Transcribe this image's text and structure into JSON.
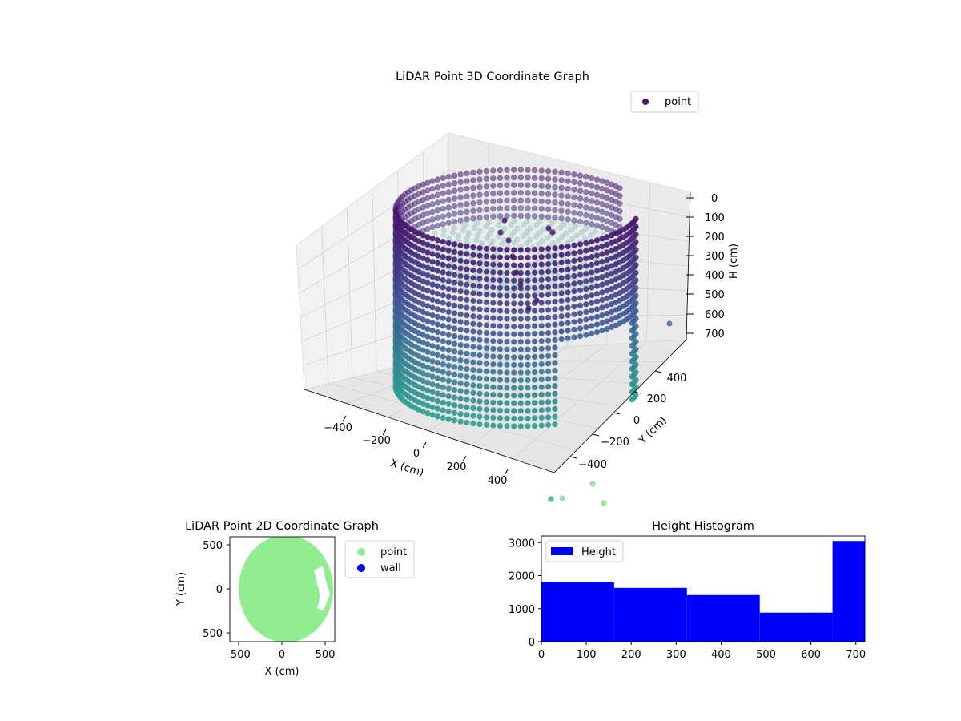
{
  "chart_data": [
    {
      "type": "scatter",
      "projection": "3d",
      "title": "LiDAR Point 3D Coordinate Graph",
      "xlabel": "X (cm)",
      "ylabel": "Y (cm)",
      "zlabel": "H (cm)",
      "xlim": [
        -600,
        600
      ],
      "ylim": [
        -600,
        600
      ],
      "zlim": [
        0,
        720
      ],
      "z_inverted": true,
      "x_ticks": [
        "−400",
        "−200",
        "0",
        "200",
        "400"
      ],
      "y_ticks": [
        "−400",
        "−200",
        "0",
        "200",
        "400"
      ],
      "z_ticks": [
        "0",
        "100",
        "200",
        "300",
        "400",
        "500",
        "600",
        "700"
      ],
      "colormap": "viridis-purple-to-teal",
      "grid": true,
      "legend": {
        "position": "upper-right",
        "entries": [
          {
            "label": "point",
            "color": "#46166e"
          }
        ]
      },
      "series": [
        {
          "name": "point",
          "description_shape": "cylindrical wall of radius ~550 cm, height 0–720 cm, with floor/ceiling ring at H≈700",
          "outliers": [
            {
              "x": 500,
              "y": 550,
              "h": 650
            },
            {
              "x": 250,
              "y": -620,
              "h": 980
            },
            {
              "x": 300,
              "y": -640,
              "h": 980
            },
            {
              "x": 450,
              "y": -620,
              "h": 940
            },
            {
              "x": 520,
              "y": -640,
              "h": 990
            }
          ]
        }
      ]
    },
    {
      "type": "scatter",
      "title": "LiDAR Point 2D Coordinate Graph",
      "xlabel": "X (cm)",
      "ylabel": "Y (cm)",
      "xlim": [
        -600,
        600
      ],
      "ylim": [
        -600,
        600
      ],
      "x_ticks": [
        -500,
        0,
        500
      ],
      "y_ticks": [
        -500,
        0,
        500
      ],
      "legend": {
        "position": "outside-right",
        "entries": [
          {
            "label": "point",
            "color": "#90ee90"
          },
          {
            "label": "wall",
            "color": "#0000ff"
          }
        ]
      },
      "series": [
        {
          "name": "point",
          "color": "#90ee90",
          "shape": "filled disk",
          "center": [
            60,
            0
          ],
          "radius": 540
        },
        {
          "name": "wall",
          "color": "#0000ff",
          "points": []
        }
      ]
    },
    {
      "type": "bar",
      "subtype": "histogram",
      "title": "Height Histogram",
      "xlim": [
        0,
        720
      ],
      "ylim": [
        0,
        3200
      ],
      "x_ticks": [
        0,
        100,
        200,
        300,
        400,
        500,
        600,
        700
      ],
      "y_ticks": [
        0,
        1000,
        2000,
        3000
      ],
      "bin_edges": [
        0,
        162,
        324,
        486,
        648,
        720
      ],
      "values": [
        1800,
        1630,
        1410,
        880,
        3050
      ],
      "color": "#0000ff",
      "legend": {
        "position": "upper-left",
        "entries": [
          {
            "label": "Height",
            "color": "#0000ff"
          }
        ]
      }
    }
  ]
}
